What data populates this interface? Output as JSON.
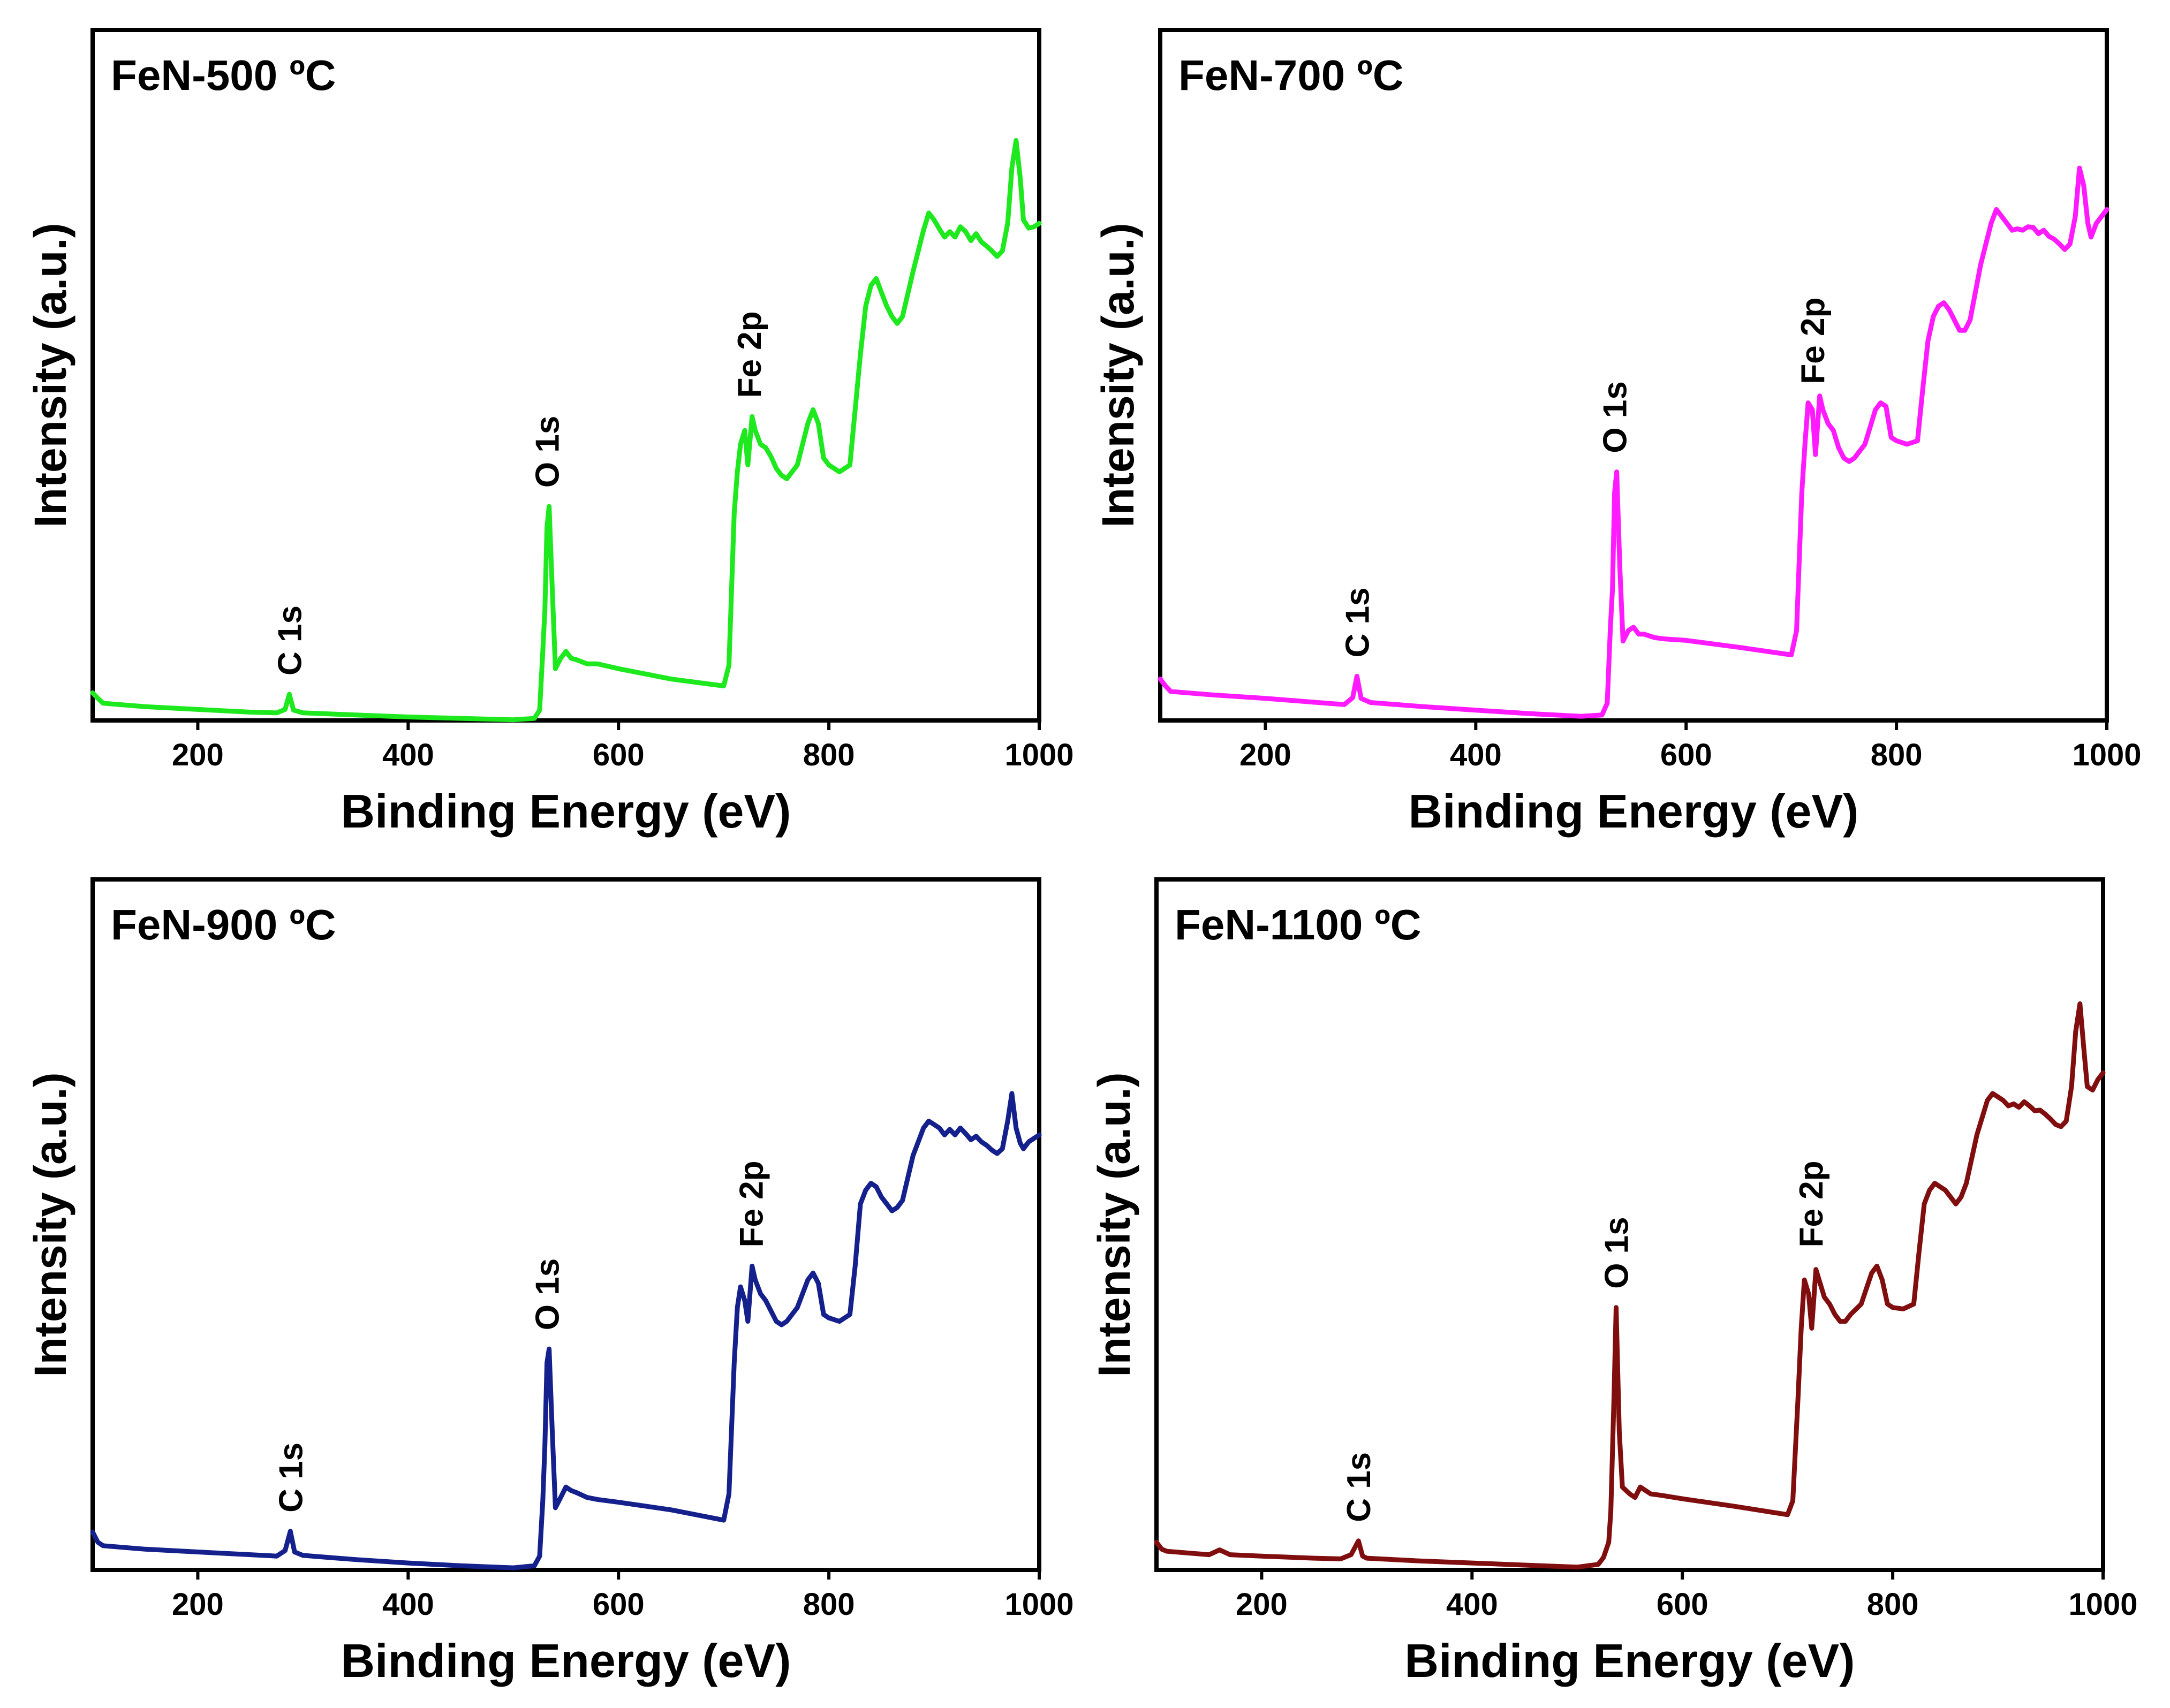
{
  "chart_data": [
    {
      "type": "line",
      "title": "FeN-500 ºC",
      "xlabel": "Binding Energy (eV)",
      "ylabel": "Intensity (a.u.)",
      "xlim": [
        100,
        1000
      ],
      "ylim": [
        0,
        100
      ],
      "xticks": [
        200,
        400,
        600,
        800,
        1000
      ],
      "color": "#1EE81E",
      "peaks": [
        {
          "label": "C 1s",
          "x": 287,
          "y": 3.8
        },
        {
          "label": "O 1s",
          "x": 532,
          "y": 31
        },
        {
          "label": "Fe 2p",
          "x": 724,
          "y": 44
        }
      ],
      "series": [
        {
          "name": "FeN-500 ºC",
          "x": [
            100,
            105,
            110,
            150,
            200,
            250,
            275,
            283,
            287,
            291,
            300,
            350,
            400,
            450,
            500,
            520,
            525,
            528,
            530,
            532,
            534,
            537,
            540,
            545,
            550,
            555,
            560,
            570,
            580,
            600,
            650,
            700,
            705,
            710,
            713,
            716,
            720,
            723,
            727,
            730,
            735,
            740,
            745,
            750,
            755,
            760,
            770,
            780,
            785,
            790,
            795,
            800,
            810,
            820,
            825,
            830,
            835,
            840,
            845,
            850,
            855,
            860,
            865,
            870,
            880,
            890,
            895,
            900,
            905,
            910,
            915,
            920,
            925,
            930,
            935,
            940,
            945,
            950,
            955,
            960,
            965,
            970,
            974,
            978,
            982,
            985,
            990,
            995,
            1000
          ],
          "y": [
            4.0,
            3.2,
            2.5,
            2.0,
            1.6,
            1.2,
            1.1,
            1.6,
            3.8,
            1.5,
            1.1,
            0.8,
            0.5,
            0.3,
            0.1,
            0.3,
            1.5,
            10,
            16,
            28,
            31,
            19,
            7.5,
            9.0,
            10,
            9.0,
            8.8,
            8.2,
            8.2,
            7.5,
            6.0,
            5.0,
            8.0,
            30,
            36,
            40,
            42,
            37,
            44,
            42,
            40,
            39.5,
            38.2,
            36.5,
            35.5,
            35,
            37,
            43,
            45,
            43,
            38,
            37,
            36,
            37,
            45,
            53,
            60,
            63,
            64,
            62,
            60,
            58.5,
            57.5,
            58.5,
            65,
            71,
            73.5,
            72.5,
            71.2,
            70,
            70.8,
            70,
            71.5,
            70.8,
            69.5,
            70.5,
            69.3,
            68.7,
            68,
            67.2,
            68,
            72,
            80,
            84,
            78.5,
            72.5,
            71.3,
            71.5,
            72
          ]
        }
      ]
    },
    {
      "type": "line",
      "title": "FeN-700 ºC",
      "xlabel": "Binding Energy (eV)",
      "ylabel": "Intensity (a.u.)",
      "xlim": [
        100,
        1000
      ],
      "ylim": [
        0,
        100
      ],
      "xticks": [
        200,
        400,
        600,
        800,
        1000
      ],
      "color": "#FF1AFF",
      "peaks": [
        {
          "label": "C 1s",
          "x": 287,
          "y": 6.4
        },
        {
          "label": "O 1s",
          "x": 532,
          "y": 36
        },
        {
          "label": "Fe 2p",
          "x": 720,
          "y": 46
        }
      ],
      "series": [
        {
          "name": "FeN-700 ºC",
          "x": [
            100,
            105,
            110,
            150,
            200,
            250,
            275,
            283,
            287,
            291,
            300,
            350,
            400,
            450,
            500,
            520,
            525,
            528,
            530,
            532,
            534,
            537,
            540,
            545,
            550,
            555,
            560,
            570,
            580,
            600,
            650,
            700,
            705,
            710,
            713,
            716,
            720,
            723,
            727,
            730,
            735,
            740,
            745,
            750,
            755,
            760,
            770,
            780,
            785,
            790,
            795,
            800,
            810,
            820,
            825,
            830,
            835,
            840,
            845,
            850,
            855,
            860,
            865,
            870,
            880,
            890,
            895,
            900,
            905,
            910,
            915,
            920,
            925,
            930,
            935,
            940,
            945,
            950,
            955,
            960,
            965,
            970,
            974,
            978,
            982,
            985,
            990,
            995,
            1000
          ],
          "y": [
            6.0,
            5.0,
            4.2,
            3.7,
            3.2,
            2.6,
            2.3,
            3.3,
            6.4,
            3.2,
            2.6,
            2.0,
            1.5,
            1.0,
            0.6,
            0.8,
            2.5,
            13.5,
            19,
            33,
            36,
            22,
            11.5,
            13,
            13.5,
            12.5,
            12.5,
            12,
            11.8,
            11.6,
            10.6,
            9.5,
            13,
            33,
            40,
            46,
            45,
            38.5,
            47,
            45,
            43,
            42,
            39.5,
            38,
            37.5,
            38,
            40,
            45,
            46,
            45.5,
            41,
            40.5,
            40,
            40.5,
            48,
            55,
            58.5,
            60,
            60.5,
            59.5,
            58,
            56.5,
            56.5,
            58,
            66,
            72,
            74,
            73,
            72,
            71,
            71.2,
            71,
            71.5,
            71.4,
            70.5,
            71,
            70.1,
            69.7,
            69,
            68.2,
            69,
            73,
            80,
            77.5,
            72,
            70,
            72,
            73,
            74
          ]
        }
      ]
    },
    {
      "type": "line",
      "title": "FeN-900 ºC",
      "xlabel": "Binding Energy (eV)",
      "ylabel": "Intensity (a.u.)",
      "xlim": [
        100,
        1000
      ],
      "ylim": [
        0,
        100
      ],
      "xticks": [
        200,
        400,
        600,
        800,
        1000
      ],
      "color": "#14208C",
      "peaks": [
        {
          "label": "C 1s",
          "x": 288,
          "y": 5.6
        },
        {
          "label": "O 1s",
          "x": 532,
          "y": 32
        },
        {
          "label": "Fe 2p",
          "x": 726,
          "y": 44
        }
      ],
      "series": [
        {
          "name": "FeN-900 ºC",
          "x": [
            100,
            105,
            110,
            150,
            200,
            250,
            275,
            283,
            288,
            292,
            300,
            350,
            400,
            450,
            500,
            520,
            525,
            528,
            530,
            532,
            534,
            537,
            540,
            545,
            550,
            555,
            560,
            570,
            580,
            600,
            650,
            700,
            705,
            710,
            713,
            716,
            720,
            723,
            727,
            730,
            735,
            740,
            745,
            750,
            755,
            760,
            770,
            780,
            785,
            790,
            795,
            800,
            810,
            820,
            825,
            830,
            835,
            840,
            845,
            850,
            855,
            860,
            865,
            870,
            880,
            890,
            895,
            900,
            905,
            910,
            915,
            920,
            925,
            930,
            935,
            940,
            945,
            950,
            955,
            960,
            965,
            970,
            974,
            978,
            982,
            985,
            990,
            995,
            1000
          ],
          "y": [
            5.5,
            4.0,
            3.5,
            3.0,
            2.6,
            2.2,
            2.0,
            2.8,
            5.6,
            2.6,
            2.1,
            1.5,
            1.0,
            0.6,
            0.3,
            0.6,
            2.0,
            10,
            18,
            30,
            32,
            20,
            9.0,
            10.5,
            12,
            11.5,
            11.2,
            10.5,
            10.2,
            9.8,
            8.7,
            7.2,
            11,
            30,
            38,
            41,
            39,
            36,
            44,
            42,
            40,
            39,
            37.5,
            36,
            35.5,
            36,
            38,
            42,
            43,
            41.5,
            37,
            36.5,
            36,
            37,
            44,
            53,
            55,
            56,
            55.5,
            54,
            53,
            52,
            52.5,
            53.5,
            60,
            64,
            65,
            64.5,
            64,
            63,
            63.8,
            63,
            64,
            63.2,
            62.3,
            62.8,
            62,
            61.5,
            60.8,
            60.3,
            61,
            65,
            69,
            64,
            61.8,
            61,
            62,
            62.5,
            63
          ]
        }
      ]
    },
    {
      "type": "line",
      "title": "FeN-1100 ºC",
      "xlabel": "Binding Energy (eV)",
      "ylabel": "Intensity (a.u.)",
      "xlim": [
        100,
        1000
      ],
      "ylim": [
        0,
        100
      ],
      "xticks": [
        200,
        400,
        600,
        800,
        1000
      ],
      "color": "#800E0E",
      "peaks": [
        {
          "label": "C 1s",
          "x": 292,
          "y": 4.2
        },
        {
          "label": "O 1s",
          "x": 537,
          "y": 38
        },
        {
          "label": "Fe 2p",
          "x": 722,
          "y": 44
        }
      ],
      "series": [
        {
          "name": "FeN-1100 ºC",
          "x": [
            100,
            105,
            110,
            150,
            160,
            170,
            200,
            250,
            275,
            285,
            292,
            296,
            300,
            350,
            400,
            450,
            500,
            520,
            525,
            530,
            532,
            535,
            537,
            540,
            543,
            550,
            555,
            560,
            570,
            580,
            600,
            650,
            700,
            705,
            710,
            713,
            716,
            720,
            723,
            727,
            730,
            735,
            740,
            745,
            750,
            755,
            760,
            770,
            780,
            785,
            790,
            795,
            800,
            810,
            820,
            825,
            830,
            835,
            840,
            845,
            850,
            855,
            860,
            865,
            870,
            880,
            890,
            895,
            900,
            905,
            910,
            915,
            920,
            925,
            930,
            935,
            940,
            945,
            950,
            955,
            960,
            965,
            970,
            974,
            978,
            982,
            985,
            990,
            995,
            1000
          ],
          "y": [
            4.0,
            3.0,
            2.7,
            2.2,
            2.9,
            2.2,
            2.0,
            1.7,
            1.6,
            2.2,
            4.2,
            2.0,
            1.7,
            1.3,
            1.0,
            0.7,
            0.4,
            0.8,
            1.8,
            4,
            8.5,
            25,
            38,
            20,
            12,
            11,
            10.5,
            12,
            11,
            10.8,
            10.3,
            9.2,
            8.0,
            10,
            25,
            35,
            42,
            40,
            35,
            43.5,
            42,
            39.5,
            38.5,
            37,
            36,
            36,
            37,
            38.5,
            43,
            44,
            42,
            38.5,
            38,
            37.8,
            38.5,
            46,
            53,
            55,
            56,
            55.5,
            55,
            54,
            53,
            54,
            56,
            63,
            68,
            69,
            68.5,
            68,
            67.2,
            67.5,
            67,
            67.8,
            67.2,
            66.5,
            66.6,
            66,
            65.3,
            64.5,
            64.2,
            65,
            70,
            78,
            82,
            75,
            70,
            69.5,
            71,
            72
          ]
        }
      ]
    }
  ]
}
